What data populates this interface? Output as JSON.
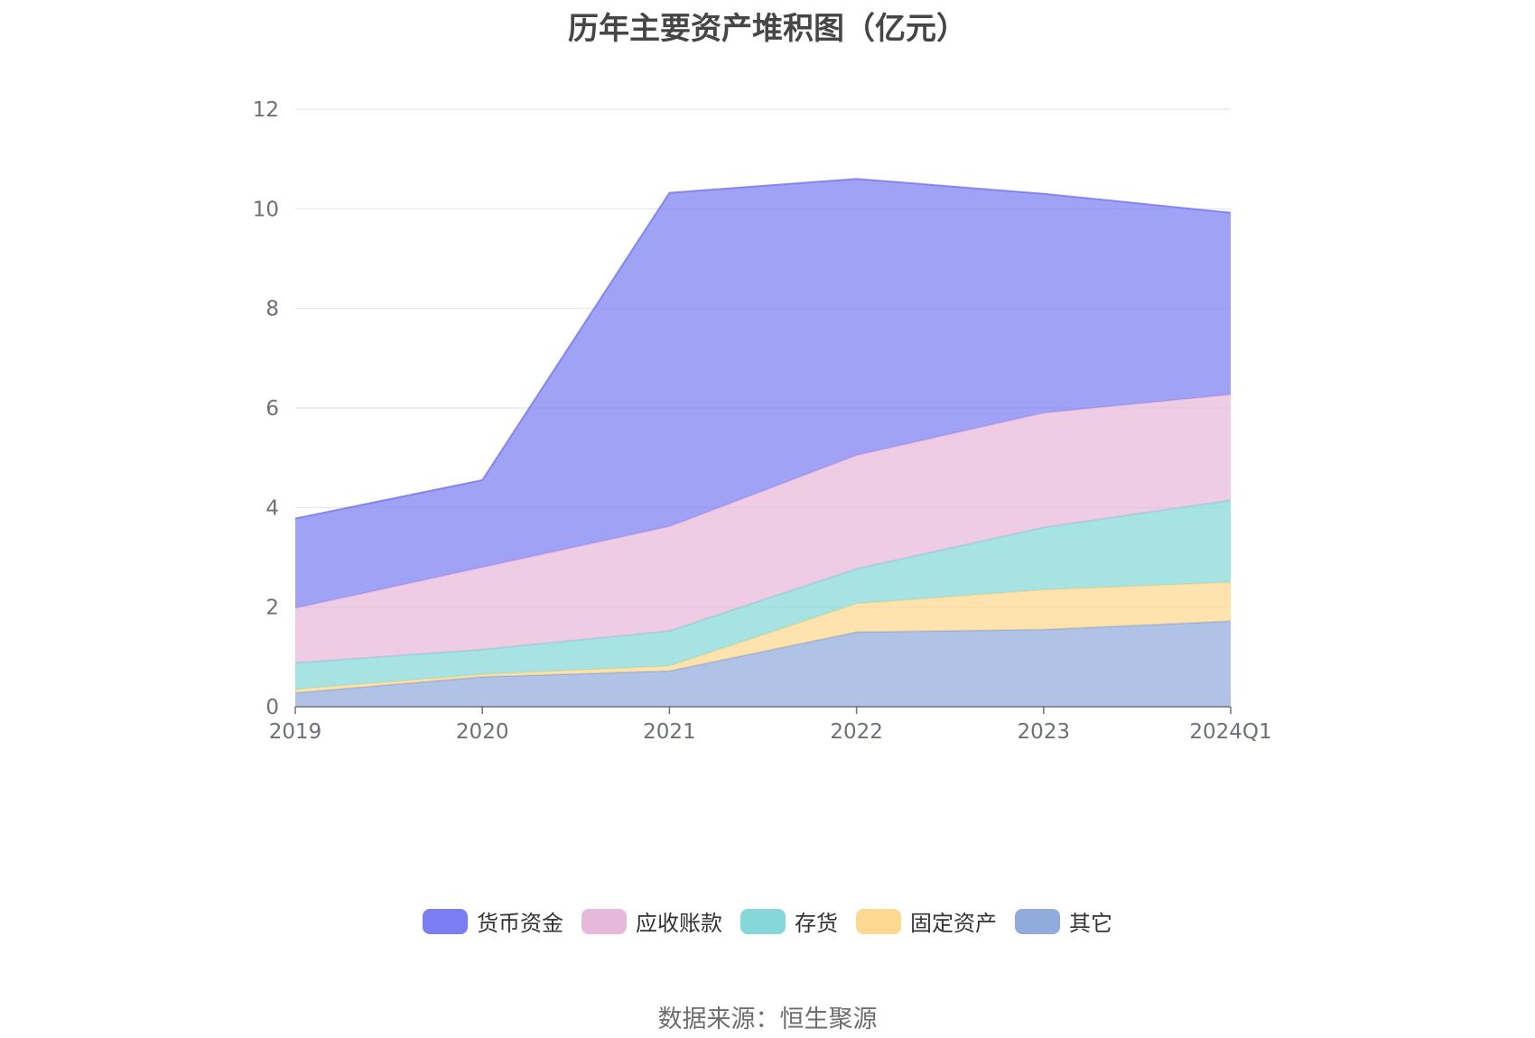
{
  "title": "历年主要资产堆积图（亿元）",
  "source": "数据来源：恒生聚源",
  "chart_data": {
    "type": "area",
    "stacked": true,
    "categories": [
      "2019",
      "2020",
      "2021",
      "2022",
      "2023",
      "2024Q1"
    ],
    "ylim": [
      0,
      12
    ],
    "yticks": [
      "0",
      "2",
      "4",
      "6",
      "8",
      "10",
      "12"
    ],
    "grid": true,
    "legend_position": "bottom",
    "series": [
      {
        "name": "其它",
        "color": "#91acdc",
        "values": [
          0.28,
          0.6,
          0.72,
          1.5,
          1.55,
          1.72
        ]
      },
      {
        "name": "固定资产",
        "color": "#fdd890",
        "values": [
          0.07,
          0.05,
          0.1,
          0.57,
          0.8,
          0.78
        ]
      },
      {
        "name": "存货",
        "color": "#86d8d8",
        "values": [
          0.53,
          0.5,
          0.7,
          0.7,
          1.25,
          1.65
        ]
      },
      {
        "name": "应收账款",
        "color": "#e6b8da",
        "values": [
          1.1,
          1.65,
          2.1,
          2.28,
          2.3,
          2.12
        ]
      },
      {
        "name": "货币资金",
        "color": "#7b7ef2",
        "values": [
          1.8,
          1.75,
          6.7,
          5.55,
          4.4,
          3.65
        ]
      }
    ]
  },
  "legend": {
    "items": [
      {
        "name": "货币资金",
        "color": "#7b7ef2"
      },
      {
        "name": "应收账款",
        "color": "#e6b8da"
      },
      {
        "name": "存货",
        "color": "#86d8d8"
      },
      {
        "name": "固定资产",
        "color": "#fdd890"
      },
      {
        "name": "其它",
        "color": "#91acdc"
      }
    ]
  }
}
